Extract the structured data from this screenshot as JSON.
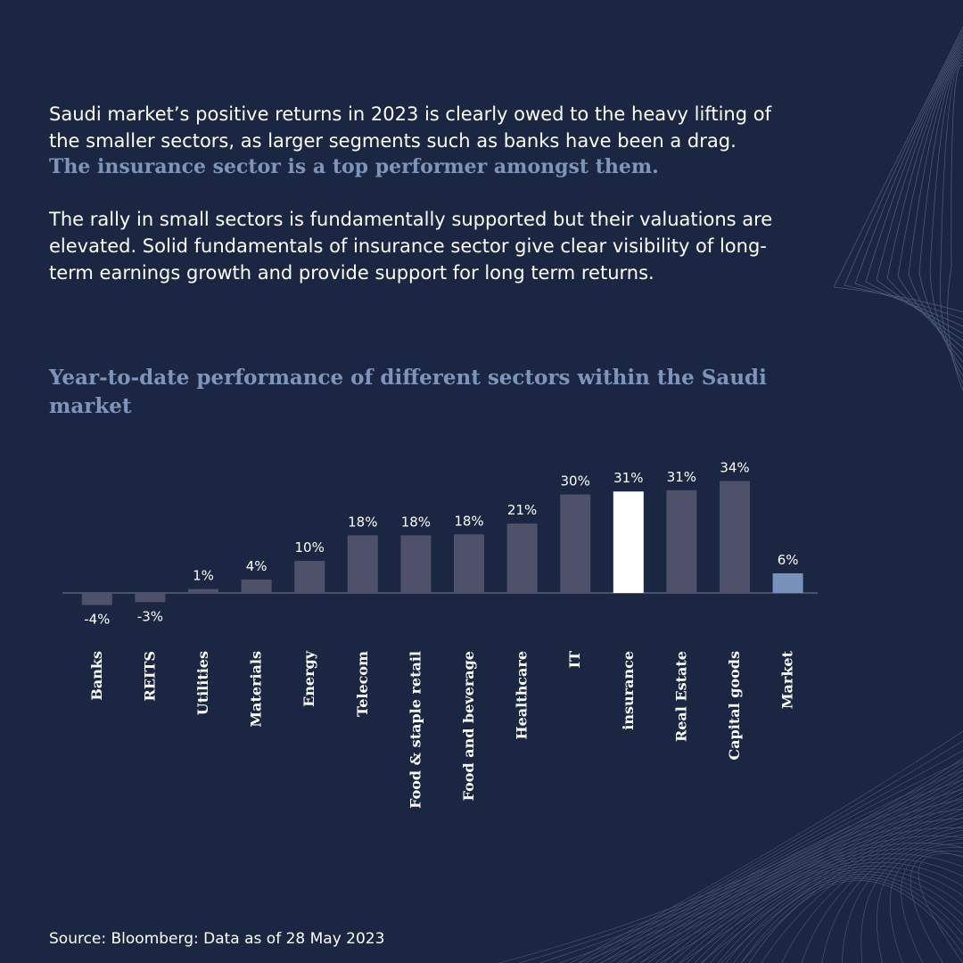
{
  "intro": {
    "paragraph1": "Saudi market’s positive returns in 2023 is clearly owed to the heavy lifting of the smaller sectors, as larger segments such as banks have been a drag.",
    "highlight": "The insurance sector is a top performer amongst them.",
    "paragraph2": "The rally in small sectors is fundamentally supported but their valuations are elevated. Solid fundamentals of insurance sector give clear visibility of long-term earnings growth and provide support for long term returns."
  },
  "chart_data": {
    "type": "bar",
    "title": "Year-to-date performance of different sectors within the Saudi market",
    "xlabel": "",
    "ylabel": "",
    "categories": [
      "Banks",
      "REITS",
      "Utilities",
      "Materials",
      "Energy",
      "Telecom",
      "Food & staple retail",
      "Food and beverage",
      "Healthcare",
      "IT",
      "insurance",
      "Real Estate",
      "Capital goods",
      "Market"
    ],
    "values": [
      -3.7,
      -2.8,
      1.2,
      4.1,
      9.8,
      17.6,
      17.6,
      17.9,
      21.2,
      30.1,
      31.0,
      31.4,
      34.2,
      6.0
    ],
    "labels": [
      "-4%",
      "-3%",
      "1%",
      "4%",
      "10%",
      "18%",
      "18%",
      "18%",
      "21%",
      "30%",
      "31%",
      "31%",
      "34%",
      "6%"
    ],
    "ylim": [
      -5,
      35
    ],
    "grid": false,
    "legend": "none",
    "colors": {
      "default": "#4f5069",
      "highlight": "#ffffff",
      "market": "#7791ba",
      "baseline": "#5a6176",
      "label": "#ffffff"
    },
    "highlight_category": "insurance",
    "market_category": "Market"
  },
  "footer": {
    "source": "Source: Bloomberg: Data as of 28 May 2023"
  },
  "colors": {
    "background": "#1b2642",
    "accent": "#7e95bb",
    "text": "#ffffff"
  }
}
